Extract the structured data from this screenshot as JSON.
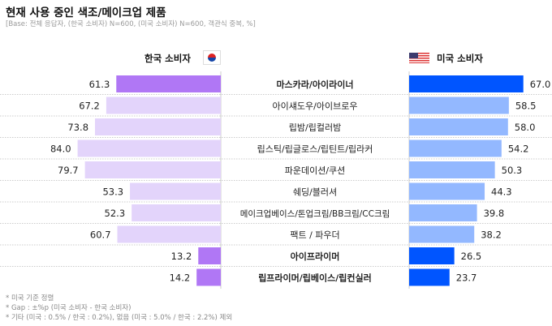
{
  "title": "현재 사용 중인 색조/메이크업 제품",
  "subtitle": "[Base: 전체 응답자, (한국 소비자) N=600, (미국 소비자) N=600, 객관식 중복, %]",
  "notes": [
    "* 미국 기준 정렬",
    "* Gap : ±%p (미국 소비자 - 한국 소비자)",
    "* 기타 (미국 : 0.5% / 한국 : 0.2%), 없음 (미국 : 5.0% / 한국 : 2.2%) 제외"
  ],
  "colors": {
    "kr_hi": "#b077f5",
    "kr": "#e3d4fb",
    "us_hi": "#0055ff",
    "us": "#93b8ff"
  },
  "chart_data": {
    "type": "bar",
    "title": "현재 사용 중인 색조/메이크업 제품",
    "categories": [
      "마스카라/아이라이너",
      "아이섀도우/아이브로우",
      "립밤/립컬러밤",
      "립스틱/립글로스/립틴트/립라커",
      "파운데이션/쿠션",
      "쉐딩/블러셔",
      "메이크업베이스/톤업크림/BB크림/CC크림",
      "팩트 / 파우더",
      "아이프라이머",
      "립프라이머/립베이스/립컨실러"
    ],
    "highlighted": [
      true,
      false,
      false,
      false,
      false,
      false,
      false,
      false,
      true,
      true
    ],
    "series": [
      {
        "name": "한국 소비자",
        "values": [
          61.3,
          67.2,
          73.8,
          84.0,
          79.7,
          53.3,
          52.3,
          60.7,
          13.2,
          14.2
        ]
      },
      {
        "name": "미국 소비자",
        "values": [
          67.0,
          58.5,
          58.0,
          54.2,
          50.3,
          44.3,
          39.8,
          38.2,
          26.5,
          23.7
        ]
      }
    ],
    "unit": "%"
  }
}
